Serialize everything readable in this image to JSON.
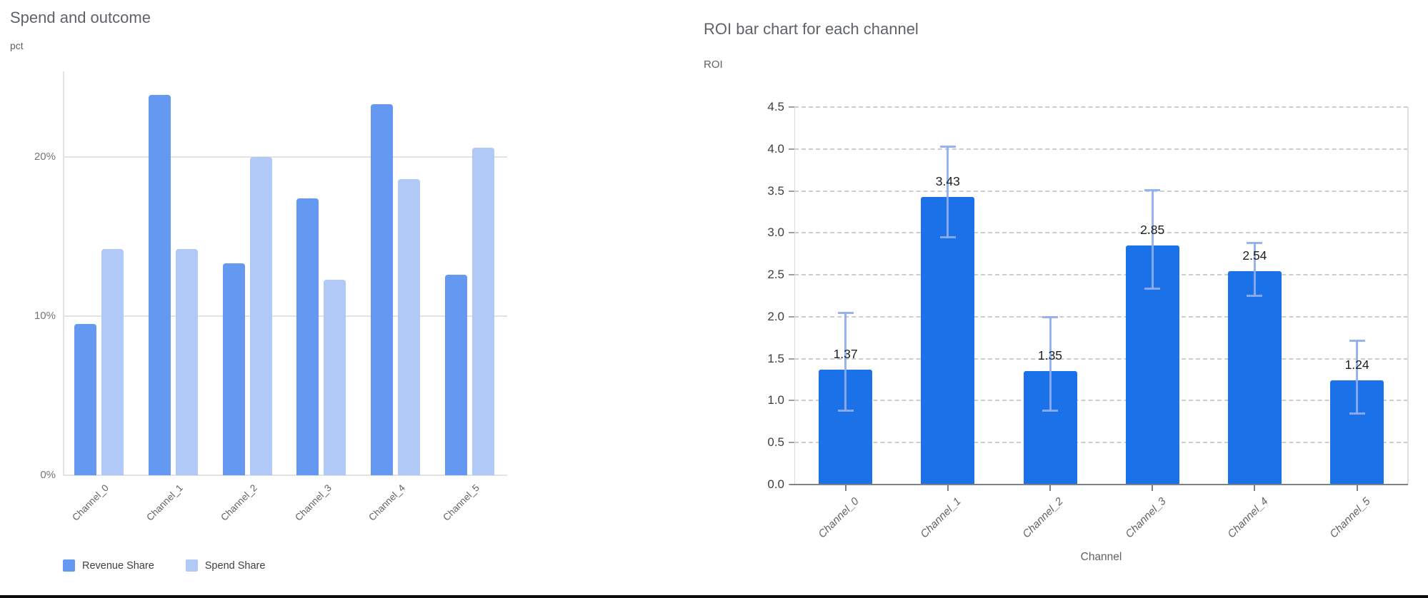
{
  "colors": {
    "revenue_share": "#6598f0",
    "spend_share": "#b1c9f7",
    "roi_bar": "#1b72e8",
    "error_bar": "#8fadf0",
    "title_gray": "#5f6368"
  },
  "chart_data": [
    {
      "type": "bar",
      "title": "Spend and outcome",
      "ylabel": "pct",
      "xlabel": "",
      "categories": [
        "Channel_0",
        "Channel_1",
        "Channel_2",
        "Channel_3",
        "Channel_4",
        "Channel_5"
      ],
      "series": [
        {
          "name": "Revenue Share",
          "values": [
            9.5,
            23.9,
            13.3,
            17.4,
            23.3,
            12.6
          ]
        },
        {
          "name": "Spend Share",
          "values": [
            14.2,
            14.2,
            20.0,
            12.3,
            18.6,
            20.6
          ]
        }
      ],
      "y_tick_labels": [
        "0%",
        "10%",
        "20%"
      ],
      "y_tick_values": [
        0,
        10,
        20
      ],
      "ylim": [
        0,
        25.4
      ],
      "grid": "solid",
      "legend_position": "bottom"
    },
    {
      "type": "bar",
      "title": "ROI bar chart for each channel",
      "ylabel": "ROI",
      "xlabel": "Channel",
      "categories": [
        "Channel_0",
        "Channel_1",
        "Channel_2",
        "Channel_3",
        "Channel_4",
        "Channel_5"
      ],
      "values": [
        1.37,
        3.43,
        1.35,
        2.85,
        2.54,
        1.24
      ],
      "bar_labels": [
        "1.37",
        "3.43",
        "1.35",
        "2.85",
        "2.54",
        "1.24"
      ],
      "error_low": [
        0.88,
        2.94,
        0.88,
        2.33,
        2.25,
        0.84
      ],
      "error_high": [
        2.05,
        4.03,
        2.0,
        3.51,
        2.88,
        1.72
      ],
      "y_tick_labels": [
        "0.0",
        "0.5",
        "1.0",
        "1.5",
        "2.0",
        "2.5",
        "3.0",
        "3.5",
        "4.0",
        "4.5"
      ],
      "y_tick_values": [
        0,
        0.5,
        1,
        1.5,
        2,
        2.5,
        3,
        3.5,
        4,
        4.5
      ],
      "ylim": [
        0,
        4.5
      ],
      "grid": "dashed",
      "legend_position": "none"
    }
  ]
}
